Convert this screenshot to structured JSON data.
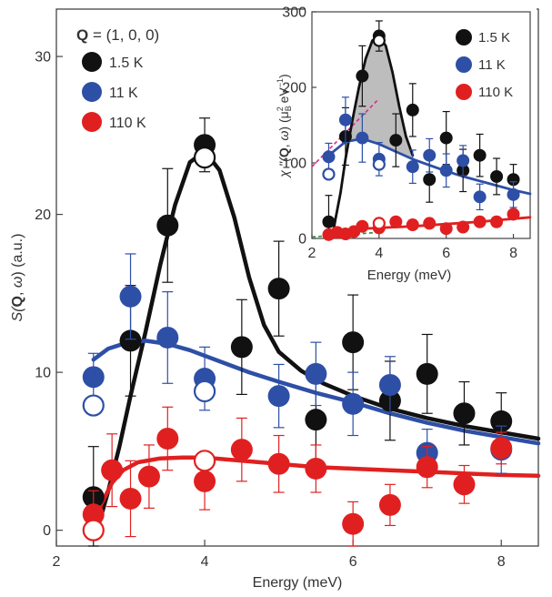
{
  "chart_data": [
    {
      "type": "scatter",
      "panel": "main",
      "ylabel_parts": [
        "S(",
        "Q",
        ", ",
        "ω",
        ") (a.u.)"
      ],
      "xlabel": "Energy (meV)",
      "xlim": [
        2.0,
        8.5
      ],
      "ylim": [
        -1.0,
        33.0
      ],
      "xticks": [
        2,
        4,
        6,
        8
      ],
      "yticks": [
        0,
        10,
        20,
        30
      ],
      "legend": {
        "position": "top-left",
        "title_parts": [
          "Q",
          " = (1, 0, 0)"
        ],
        "entries": [
          "1.5 K",
          "11 K",
          "110 K"
        ]
      },
      "series": [
        {
          "name": "1.5 K",
          "color": "#111111",
          "points": [
            {
              "x": 2.5,
              "y": 2.1,
              "err": 3.2
            },
            {
              "x": 3.0,
              "y": 12.0,
              "err": 3.5
            },
            {
              "x": 3.5,
              "y": 19.3,
              "err": 3.6
            },
            {
              "x": 4.0,
              "y": 24.4,
              "err": 1.7
            },
            {
              "x": 4.5,
              "y": 11.6,
              "err": 3.0
            },
            {
              "x": 5.0,
              "y": 15.3,
              "err": 3.0
            },
            {
              "x": 5.5,
              "y": 7.0,
              "err": 2.8
            },
            {
              "x": 6.0,
              "y": 11.9,
              "err": 3.0
            },
            {
              "x": 6.5,
              "y": 8.2,
              "err": 2.5
            },
            {
              "x": 7.0,
              "y": 9.9,
              "err": 2.5
            },
            {
              "x": 7.5,
              "y": 7.4,
              "err": 2.0
            },
            {
              "x": 8.0,
              "y": 6.9,
              "err": 1.8
            }
          ],
          "open_points": [
            {
              "x": 4.0,
              "y": 23.6
            }
          ],
          "fit": [
            [
              2.55,
              0.0
            ],
            [
              2.7,
              2.5
            ],
            [
              2.85,
              5.3
            ],
            [
              3.0,
              8.5
            ],
            [
              3.2,
              12.5
            ],
            [
              3.4,
              16.8
            ],
            [
              3.6,
              20.6
            ],
            [
              3.8,
              23.3
            ],
            [
              4.0,
              24.0
            ],
            [
              4.2,
              22.8
            ],
            [
              4.4,
              19.8
            ],
            [
              4.6,
              16.0
            ],
            [
              4.8,
              13.0
            ],
            [
              5.0,
              11.3
            ],
            [
              5.3,
              10.1
            ],
            [
              5.6,
              9.3
            ],
            [
              6.0,
              8.5
            ],
            [
              6.5,
              7.7
            ],
            [
              7.0,
              7.1
            ],
            [
              7.5,
              6.6
            ],
            [
              8.0,
              6.2
            ],
            [
              8.5,
              5.8
            ]
          ]
        },
        {
          "name": "11 K",
          "color": "#2e4fa6",
          "points": [
            {
              "x": 2.5,
              "y": 9.7,
              "err": 1.5
            },
            {
              "x": 3.0,
              "y": 14.8,
              "err": 2.7
            },
            {
              "x": 3.5,
              "y": 12.2,
              "err": 2.9
            },
            {
              "x": 4.0,
              "y": 9.6,
              "err": 2.0
            },
            {
              "x": 5.0,
              "y": 8.5,
              "err": 2.0
            },
            {
              "x": 5.5,
              "y": 9.9,
              "err": 2.0
            },
            {
              "x": 6.0,
              "y": 8.0,
              "err": 2.0
            },
            {
              "x": 6.5,
              "y": 9.2,
              "err": 1.8
            },
            {
              "x": 7.0,
              "y": 4.9,
              "err": 1.5
            },
            {
              "x": 8.0,
              "y": 5.1,
              "err": 1.5
            }
          ],
          "open_points": [
            {
              "x": 2.5,
              "y": 7.9
            },
            {
              "x": 4.0,
              "y": 8.8
            }
          ],
          "fit": [
            [
              2.5,
              10.8
            ],
            [
              2.7,
              11.5
            ],
            [
              2.9,
              11.8
            ],
            [
              3.2,
              12.0
            ],
            [
              3.5,
              11.8
            ],
            [
              3.8,
              11.4
            ],
            [
              4.2,
              10.7
            ],
            [
              4.6,
              10.0
            ],
            [
              5.0,
              9.4
            ],
            [
              5.5,
              8.7
            ],
            [
              6.0,
              8.1
            ],
            [
              6.5,
              7.4
            ],
            [
              7.0,
              6.8
            ],
            [
              7.5,
              6.3
            ],
            [
              8.0,
              5.9
            ],
            [
              8.5,
              5.5
            ]
          ]
        },
        {
          "name": "110 K",
          "color": "#e02020",
          "points": [
            {
              "x": 2.5,
              "y": 1.0,
              "err": 1.5
            },
            {
              "x": 2.75,
              "y": 3.8,
              "err": 2.3
            },
            {
              "x": 3.0,
              "y": 2.0,
              "err": 2.4
            },
            {
              "x": 3.25,
              "y": 3.4,
              "err": 2.0
            },
            {
              "x": 3.5,
              "y": 5.8,
              "err": 2.0
            },
            {
              "x": 4.0,
              "y": 3.1,
              "err": 1.8
            },
            {
              "x": 4.5,
              "y": 5.1,
              "err": 2.0
            },
            {
              "x": 5.0,
              "y": 4.2,
              "err": 1.8
            },
            {
              "x": 5.5,
              "y": 3.9,
              "err": 1.5
            },
            {
              "x": 6.0,
              "y": 0.4,
              "err": 1.4
            },
            {
              "x": 6.5,
              "y": 1.6,
              "err": 1.3
            },
            {
              "x": 7.0,
              "y": 4.0,
              "err": 1.3
            },
            {
              "x": 7.5,
              "y": 2.9,
              "err": 1.2
            },
            {
              "x": 8.0,
              "y": 5.2,
              "err": 1.0
            }
          ],
          "open_points": [
            {
              "x": 2.5,
              "y": 0.0
            },
            {
              "x": 4.0,
              "y": 4.4
            }
          ],
          "fit": [
            [
              2.5,
              0.0
            ],
            [
              2.6,
              1.6
            ],
            [
              2.75,
              3.0
            ],
            [
              2.9,
              3.8
            ],
            [
              3.1,
              4.3
            ],
            [
              3.4,
              4.55
            ],
            [
              3.7,
              4.6
            ],
            [
              4.0,
              4.6
            ],
            [
              4.5,
              4.4
            ],
            [
              5.0,
              4.2
            ],
            [
              5.5,
              4.0
            ],
            [
              6.0,
              3.9
            ],
            [
              6.5,
              3.8
            ],
            [
              7.0,
              3.7
            ],
            [
              7.5,
              3.6
            ],
            [
              8.0,
              3.5
            ],
            [
              8.5,
              3.45
            ]
          ]
        }
      ]
    },
    {
      "type": "scatter",
      "panel": "inset",
      "ylabel_parts": [
        "χ ''(",
        "Q",
        ", ",
        "ω",
        ") (μ",
        "B",
        "2",
        " eV",
        "−1",
        ")"
      ],
      "xlabel": "Energy (meV)",
      "xlim": [
        2.0,
        8.5
      ],
      "ylim": [
        0,
        300
      ],
      "xticks": [
        2,
        4,
        6,
        8
      ],
      "yticks": [
        0,
        100,
        200,
        300
      ],
      "legend": {
        "position": "top-right",
        "entries": [
          "1.5 K",
          "11 K",
          "110 K"
        ]
      },
      "series": [
        {
          "name": "1.5 K",
          "color": "#111111",
          "points": [
            {
              "x": 2.5,
              "y": 22,
              "err": 35
            },
            {
              "x": 3.0,
              "y": 135,
              "err": 38
            },
            {
              "x": 3.5,
              "y": 215,
              "err": 40
            },
            {
              "x": 4.0,
              "y": 268,
              "err": 20
            },
            {
              "x": 4.5,
              "y": 130,
              "err": 35
            },
            {
              "x": 5.0,
              "y": 170,
              "err": 35
            },
            {
              "x": 5.5,
              "y": 78,
              "err": 30
            },
            {
              "x": 6.0,
              "y": 133,
              "err": 35
            },
            {
              "x": 6.5,
              "y": 90,
              "err": 28
            },
            {
              "x": 7.0,
              "y": 110,
              "err": 28
            },
            {
              "x": 7.5,
              "y": 82,
              "err": 24
            },
            {
              "x": 8.0,
              "y": 78,
              "err": 20
            }
          ],
          "open_points": [
            {
              "x": 4.0,
              "y": 262
            }
          ],
          "fit": [
            [
              2.6,
              0
            ],
            [
              2.7,
              25
            ],
            [
              2.85,
              60
            ],
            [
              3.0,
              105
            ],
            [
              3.2,
              155
            ],
            [
              3.4,
              200
            ],
            [
              3.6,
              238
            ],
            [
              3.8,
              262
            ],
            [
              4.0,
              268
            ],
            [
              4.2,
              255
            ],
            [
              4.4,
              220
            ],
            [
              4.6,
              175
            ],
            [
              4.8,
              135
            ],
            [
              5.0,
              110
            ]
          ],
          "shaded_peak": true
        },
        {
          "name": "11 K",
          "color": "#2e4fa6",
          "points": [
            {
              "x": 2.5,
              "y": 108,
              "err": 18
            },
            {
              "x": 3.0,
              "y": 157,
              "err": 30
            },
            {
              "x": 3.5,
              "y": 133,
              "err": 32
            },
            {
              "x": 4.0,
              "y": 105,
              "err": 22
            },
            {
              "x": 5.0,
              "y": 95,
              "err": 22
            },
            {
              "x": 5.5,
              "y": 110,
              "err": 22
            },
            {
              "x": 6.0,
              "y": 90,
              "err": 22
            },
            {
              "x": 6.5,
              "y": 103,
              "err": 20
            },
            {
              "x": 7.0,
              "y": 55,
              "err": 17
            },
            {
              "x": 8.0,
              "y": 58,
              "err": 17
            }
          ],
          "open_points": [
            {
              "x": 2.5,
              "y": 85
            },
            {
              "x": 4.0,
              "y": 98
            }
          ],
          "fit": [
            [
              2.5,
              110
            ],
            [
              3.0,
              128
            ],
            [
              3.5,
              132
            ],
            [
              4.0,
              125
            ],
            [
              4.5,
              115
            ],
            [
              5.0,
              105
            ],
            [
              5.5,
              97
            ],
            [
              6.0,
              89
            ],
            [
              6.5,
              82
            ],
            [
              7.0,
              76
            ],
            [
              7.5,
              70
            ],
            [
              8.0,
              64
            ],
            [
              8.5,
              59
            ]
          ]
        },
        {
          "name": "110 K",
          "color": "#e02020",
          "points": [
            {
              "x": 2.5,
              "y": 5,
              "err": 6
            },
            {
              "x": 2.75,
              "y": 8,
              "err": 6
            },
            {
              "x": 3.0,
              "y": 6,
              "err": 6
            },
            {
              "x": 3.25,
              "y": 9,
              "err": 6
            },
            {
              "x": 3.5,
              "y": 16,
              "err": 6
            },
            {
              "x": 4.0,
              "y": 14,
              "err": 6
            },
            {
              "x": 4.5,
              "y": 22,
              "err": 6
            },
            {
              "x": 5.0,
              "y": 18,
              "err": 6
            },
            {
              "x": 5.5,
              "y": 20,
              "err": 6
            },
            {
              "x": 6.0,
              "y": 13,
              "err": 6
            },
            {
              "x": 6.5,
              "y": 15,
              "err": 6
            },
            {
              "x": 7.0,
              "y": 22,
              "err": 6
            },
            {
              "x": 7.5,
              "y": 22,
              "err": 6
            },
            {
              "x": 8.0,
              "y": 32,
              "err": 6
            }
          ],
          "open_points": [
            {
              "x": 4.0,
              "y": 20
            }
          ],
          "fit": [
            [
              2.5,
              0
            ],
            [
              2.6,
              6
            ],
            [
              2.8,
              10
            ],
            [
              3.2,
              12
            ],
            [
              4.0,
              14
            ],
            [
              5.0,
              16
            ],
            [
              6.0,
              19
            ],
            [
              7.0,
              22
            ],
            [
              8.0,
              26
            ],
            [
              8.5,
              28
            ]
          ]
        }
      ],
      "guides": [
        {
          "color": "#e0258f",
          "style": "dashed",
          "points": [
            [
              2.0,
              95
            ],
            [
              4.0,
              185
            ]
          ]
        },
        {
          "color": "#2e8b3a",
          "style": "dashed",
          "points": [
            [
              2.0,
              2
            ],
            [
              4.0,
              8
            ]
          ]
        }
      ]
    }
  ]
}
